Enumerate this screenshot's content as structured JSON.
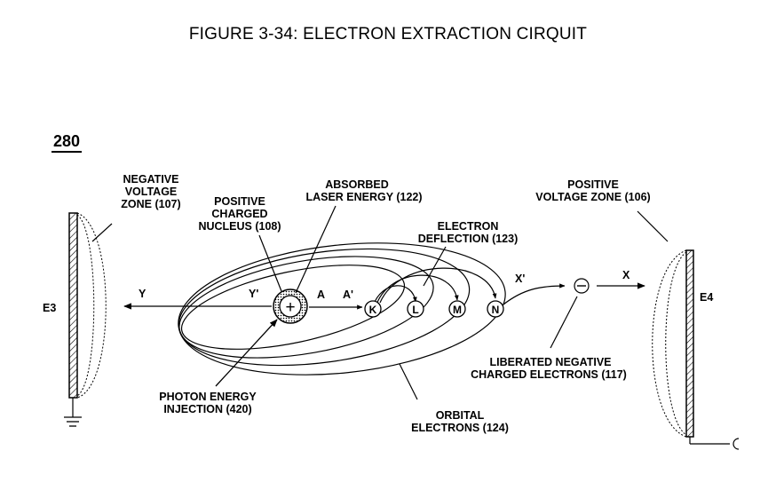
{
  "title": "FIGURE 3-34: ELECTRON EXTRACTION CIRQUIT",
  "figure_number": "280",
  "colors": {
    "ink": "#000000",
    "paper": "#ffffff"
  },
  "labels": {
    "negative_zone": [
      "NEGATIVE",
      "VOLTAGE",
      "ZONE (107)"
    ],
    "positive_nucleus": [
      "POSITIVE",
      "CHARGED",
      "NUCLEUS (108)"
    ],
    "absorbed_laser": [
      "ABSORBED",
      "LASER ENERGY (122)"
    ],
    "electron_deflection": [
      "ELECTRON",
      "DEFLECTION (123)"
    ],
    "positive_zone": [
      "POSITIVE",
      "VOLTAGE ZONE (106)"
    ],
    "photon_injection": [
      "PHOTON ENERGY",
      "INJECTION (420)"
    ],
    "orbital_electrons": [
      "ORBITAL",
      "ELECTRONS (124)"
    ],
    "liberated_electrons": [
      "LIBERATED NEGATIVE",
      "CHARGED ELECTRONS (117)"
    ],
    "e3": "E3",
    "e4": "E4",
    "y": "Y",
    "y_prime": "Y'",
    "a": "A",
    "a_prime": "A'",
    "x": "X",
    "x_prime": "X'",
    "shells": [
      "K",
      "L",
      "M",
      "N"
    ],
    "nucleus_symbol": "+",
    "electron_symbol": "⊖"
  }
}
